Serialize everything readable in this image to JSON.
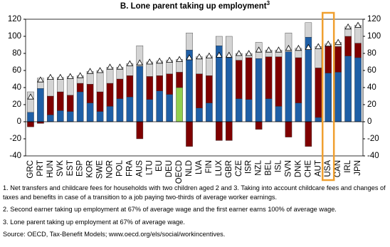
{
  "chart_data": {
    "type": "stacked_bar",
    "title": "B. Lone parent taking up employment",
    "title_superscript": "3",
    "categories": [
      "GRC",
      "PRT",
      "HUN",
      "SVK",
      "EST",
      "ESP",
      "KOR",
      "SWE",
      "NOR",
      "POL",
      "FRA",
      "AUS",
      "LTU",
      "EU",
      "DEU",
      "OECD",
      "NLD",
      "LVA",
      "FIN",
      "LUX",
      "GBR",
      "CZE",
      "ISR",
      "NZL",
      "BEL",
      "ISL",
      "SVN",
      "DNK",
      "CHE",
      "AUT",
      "USA",
      "CAN",
      "IRL",
      "JPN"
    ],
    "series": [
      {
        "color": "#1f5fa6",
        "colors": [
          "#1f5fa6",
          "#1f5fa6",
          "#1f5fa6",
          "#1f5fa6",
          "#1f5fa6",
          "#1f5fa6",
          "#1f5fa6",
          "#1f5fa6",
          "#1f5fa6",
          "#1f5fa6",
          "#1f5fa6",
          "#1f5fa6",
          "#1f5fa6",
          "#1f5fa6",
          "#1f5fa6",
          "#92d050",
          "#1f5fa6",
          "#1f5fa6",
          "#1f5fa6",
          "#1f5fa6",
          "#1f5fa6",
          "#1f5fa6",
          "#1f5fa6",
          "#1f5fa6",
          "#1f5fa6",
          "#1f5fa6",
          "#1f5fa6",
          "#1f5fa6",
          "#1f5fa6",
          "#1f5fa6",
          "#1f5fa6",
          "#1f5fa6",
          "#1f5fa6",
          "#1f5fa6"
        ],
        "values": [
          11,
          39,
          8,
          13,
          12,
          35,
          22,
          12,
          18,
          27,
          29,
          65,
          26,
          36,
          32,
          40,
          84,
          16,
          22,
          89,
          75,
          27,
          26,
          74,
          27,
          18,
          82,
          22,
          99,
          5,
          57,
          58,
          77,
          75
        ]
      },
      {
        "color": "#7f0000",
        "values": [
          -6,
          -2,
          22,
          22,
          19,
          10,
          22,
          23,
          27,
          23,
          25,
          -20,
          27,
          18,
          24,
          18,
          -29,
          40,
          32,
          -22,
          -22,
          45,
          49,
          -9,
          49,
          58,
          -18,
          53,
          -29,
          58,
          32,
          30,
          23,
          17
        ]
      },
      {
        "color": "#d4d4d4",
        "values": [
          24,
          12,
          22,
          17,
          22,
          9,
          15,
          25,
          19,
          14,
          14,
          24,
          17,
          17,
          16,
          15,
          20,
          20,
          23,
          11,
          25,
          8,
          5,
          19,
          8,
          8,
          22,
          11,
          17,
          25,
          2,
          5,
          11,
          21
        ]
      },
      {
        "color": "#ffffff",
        "marker": "triangle",
        "values": [
          29,
          49,
          52,
          52,
          53,
          54,
          59,
          60,
          64,
          64,
          68,
          69,
          70,
          71,
          72,
          73,
          75,
          76,
          77,
          78,
          78,
          80,
          80,
          84,
          84,
          84,
          86,
          86,
          87,
          88,
          91,
          93,
          111,
          113
        ]
      }
    ],
    "ylim": [
      -40,
      120
    ],
    "yticks": [
      -40,
      -20,
      0,
      20,
      40,
      60,
      80,
      100,
      120
    ],
    "y2lim": [
      -40,
      120
    ],
    "y2ticks": [
      -40,
      -20,
      0,
      20,
      40,
      60,
      80,
      100,
      120
    ],
    "grid": false,
    "notes": [
      "1. Net transfers and childcare fees for households with two children aged 2 and 3. Taking into account childcare fees and changes of taxes and benefits in case of a transition to a job paying two-thirds of average worker earnings.",
      "2. Second earner taking up employment at 67% of average wage and the first earner earns 100% of average wage.",
      "3. Lone parent taking up employment at 67% of average wage.",
      "Source: OECD, Tax-Benefit Models; www.oecd.org/els/social/workincentives."
    ]
  }
}
